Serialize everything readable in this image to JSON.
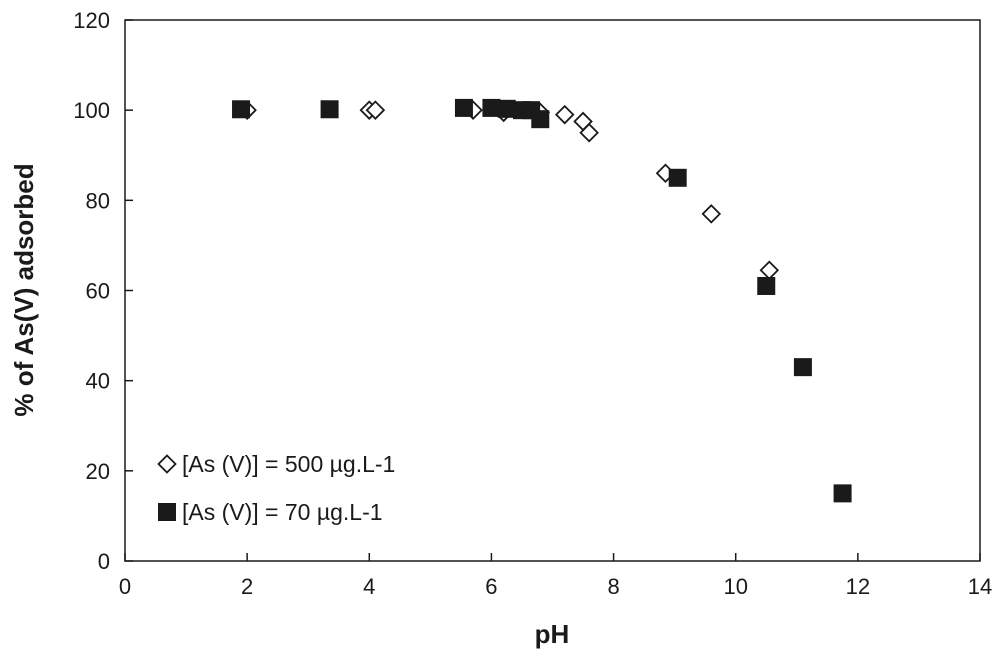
{
  "colors": {
    "axis": "#1a1a1a",
    "marker_fill_filled": "#1a1a1a",
    "marker_fill_open": "#ffffff",
    "background": "#ffffff"
  },
  "chart_data": {
    "type": "scatter",
    "title": "",
    "xlabel": "pH",
    "ylabel": "% of  As(V) adsorbed",
    "xlim": [
      0,
      14
    ],
    "ylim": [
      0,
      120
    ],
    "x_ticks": [
      0,
      2,
      4,
      6,
      8,
      10,
      12,
      14
    ],
    "y_ticks": [
      0,
      20,
      40,
      60,
      80,
      100,
      120
    ],
    "x_tick_labels": [
      "0",
      "2",
      "4",
      "6",
      "8",
      "10",
      "12",
      "14"
    ],
    "y_tick_labels": [
      "0",
      "20",
      "40",
      "60",
      "80",
      "100",
      "120"
    ],
    "grid": false,
    "legend_position": "lower-left",
    "series": [
      {
        "name": "[As (V)] = 500 µg.L-1",
        "marker": "open-diamond",
        "x": [
          2.0,
          4.0,
          4.1,
          5.7,
          6.2,
          6.8,
          7.2,
          7.5,
          7.6,
          8.85,
          9.6,
          10.55
        ],
        "y": [
          100,
          100,
          100,
          100,
          99.5,
          99.5,
          99,
          97.5,
          95,
          86,
          77,
          64.5
        ]
      },
      {
        "name": "[As (V)] = 70 µg.L-1",
        "marker": "filled-square",
        "x": [
          1.9,
          3.35,
          5.55,
          6.0,
          6.25,
          6.5,
          6.65,
          6.8,
          9.05,
          10.5,
          11.1,
          11.75
        ],
        "y": [
          100.2,
          100.2,
          100.5,
          100.5,
          100.3,
          100,
          100,
          98,
          85,
          61,
          43,
          15
        ]
      }
    ]
  }
}
